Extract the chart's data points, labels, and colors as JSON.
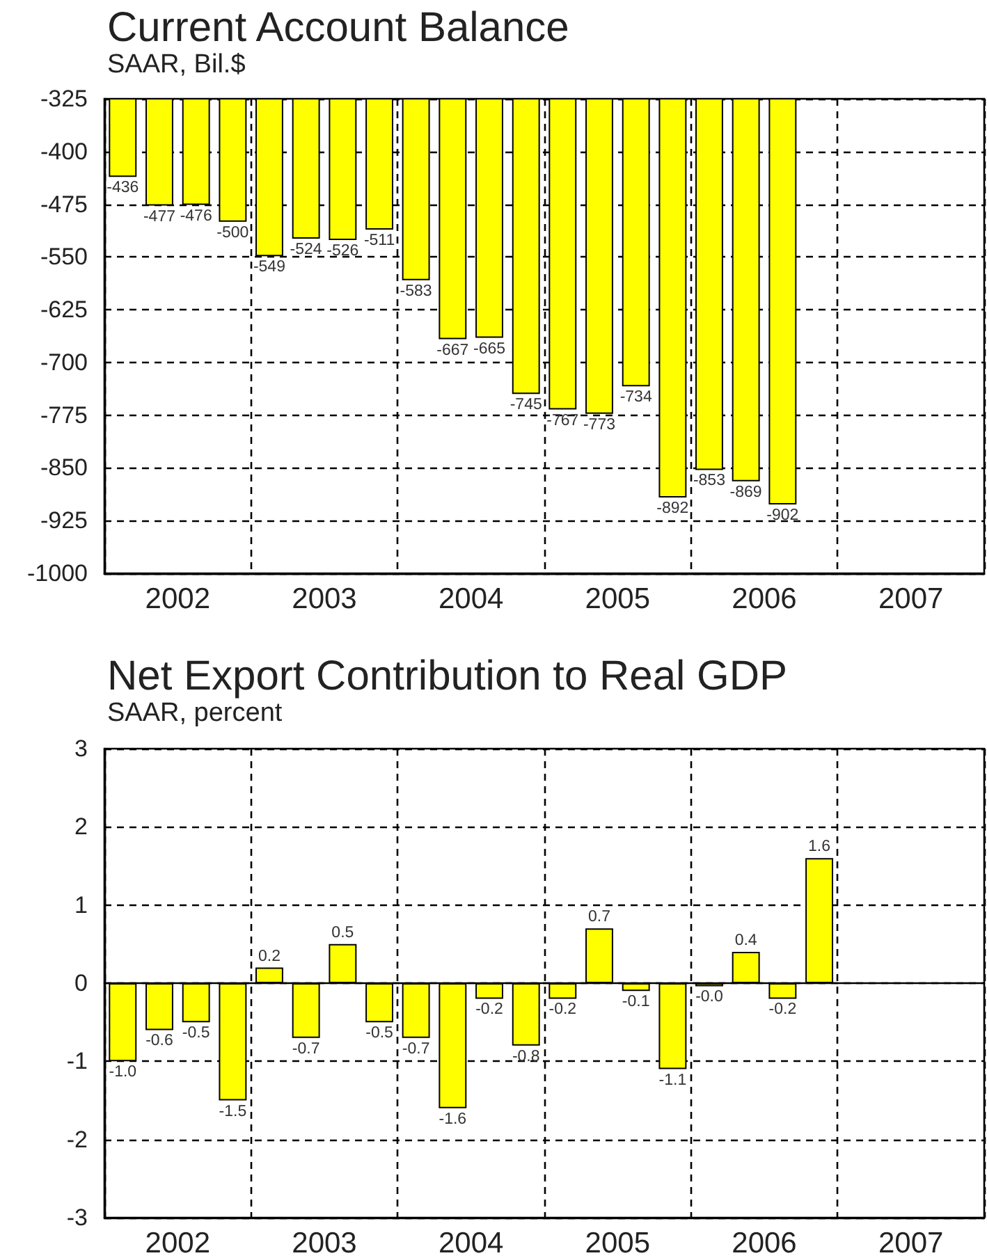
{
  "chart_data": [
    {
      "type": "bar",
      "title": "Current Account Balance",
      "subtitle": "SAAR, Bil.$",
      "categories": [
        "2002",
        "2003",
        "2004",
        "2005",
        "2006",
        "2007"
      ],
      "series": [
        {
          "color": "#ffff00",
          "values": [
            -436,
            -549,
            -583,
            -767,
            -853,
            null
          ]
        },
        {
          "color": "#ffff00",
          "values": [
            -477,
            -524,
            -667,
            -773,
            -869,
            null
          ]
        },
        {
          "color": "#ffff00",
          "values": [
            -476,
            -526,
            -665,
            -734,
            -902,
            null
          ]
        },
        {
          "color": "#ffff00",
          "values": [
            -500,
            -511,
            -745,
            -892,
            null,
            null
          ]
        }
      ],
      "ylim": [
        -1000,
        -325
      ],
      "yticks": [
        -1000,
        -925,
        -850,
        -775,
        -700,
        -625,
        -550,
        -475,
        -400,
        -325
      ],
      "grid": true,
      "data_labels": true
    },
    {
      "type": "bar",
      "title": "Net Export Contribution to Real GDP",
      "subtitle": "SAAR, percent",
      "categories": [
        "2002",
        "2003",
        "2004",
        "2005",
        "2006",
        "2007"
      ],
      "series": [
        {
          "color": "#ffff00",
          "values": [
            -1.0,
            0.2,
            -0.7,
            -0.2,
            -0.04,
            null
          ],
          "value_labels": [
            "-1.0",
            "0.2",
            "-0.7",
            "-0.2",
            "-0.0",
            null
          ]
        },
        {
          "color": "#ffff00",
          "values": [
            -0.6,
            -0.7,
            -1.6,
            0.7,
            0.4,
            null
          ],
          "value_labels": [
            "-0.6",
            "-0.7",
            "-1.6",
            "0.7",
            "0.4",
            null
          ]
        },
        {
          "color": "#ffff00",
          "values": [
            -0.5,
            0.5,
            -0.2,
            -0.1,
            -0.2,
            null
          ],
          "value_labels": [
            "-0.5",
            "0.5",
            "-0.2",
            "-0.1",
            "-0.2",
            null
          ]
        },
        {
          "color": "#ffff00",
          "values": [
            -1.5,
            -0.5,
            -0.8,
            -1.1,
            1.6,
            null
          ],
          "value_labels": [
            "-1.5",
            "-0.5",
            "-0.8",
            "-1.1",
            "1.6",
            null
          ]
        }
      ],
      "ylim": [
        -3,
        3
      ],
      "yticks": [
        -3,
        -2,
        -1,
        0,
        1,
        2,
        3
      ],
      "grid": true
    }
  ]
}
